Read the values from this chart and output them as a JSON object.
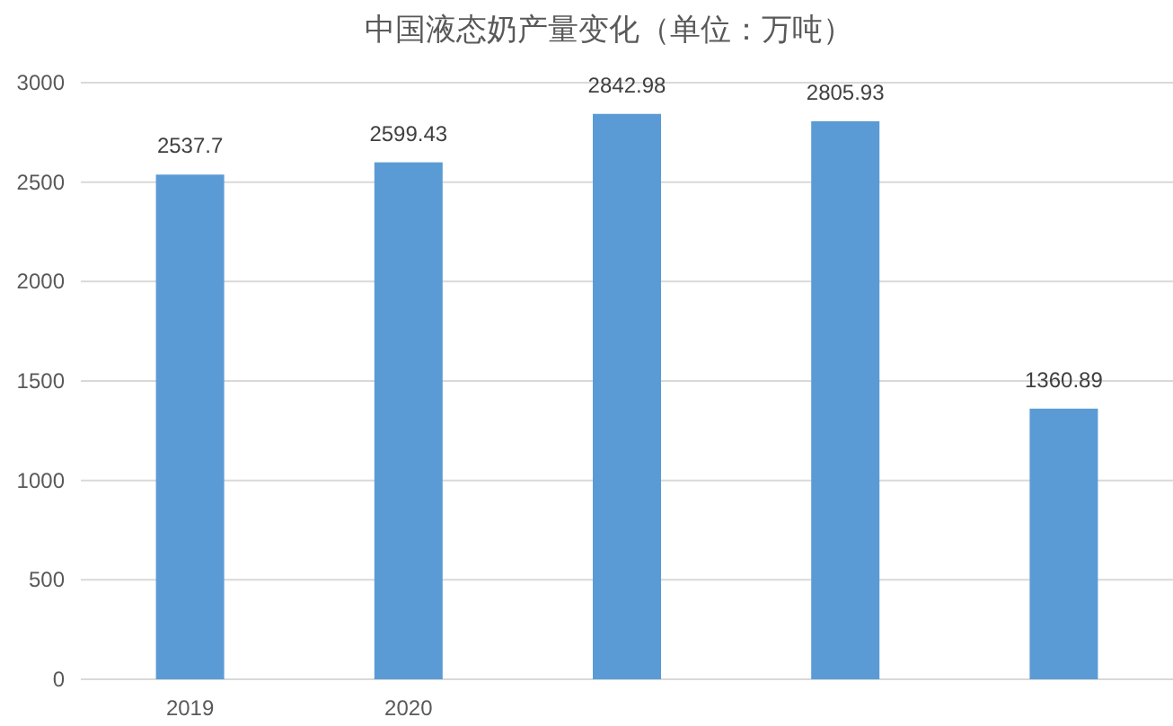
{
  "chart_data": {
    "type": "bar",
    "title": "中国液态奶产量变化（单位：万吨）",
    "categories": [
      "2019",
      "2020",
      null,
      null,
      null
    ],
    "values": [
      2537.7,
      2599.43,
      2842.98,
      2805.93,
      1360.89
    ],
    "color": "#5b9bd5",
    "ylim": [
      0,
      3000
    ],
    "yticks": [
      0,
      500,
      1000,
      1500,
      2000,
      2500,
      3000
    ],
    "grid": "y",
    "data_labels": true
  }
}
